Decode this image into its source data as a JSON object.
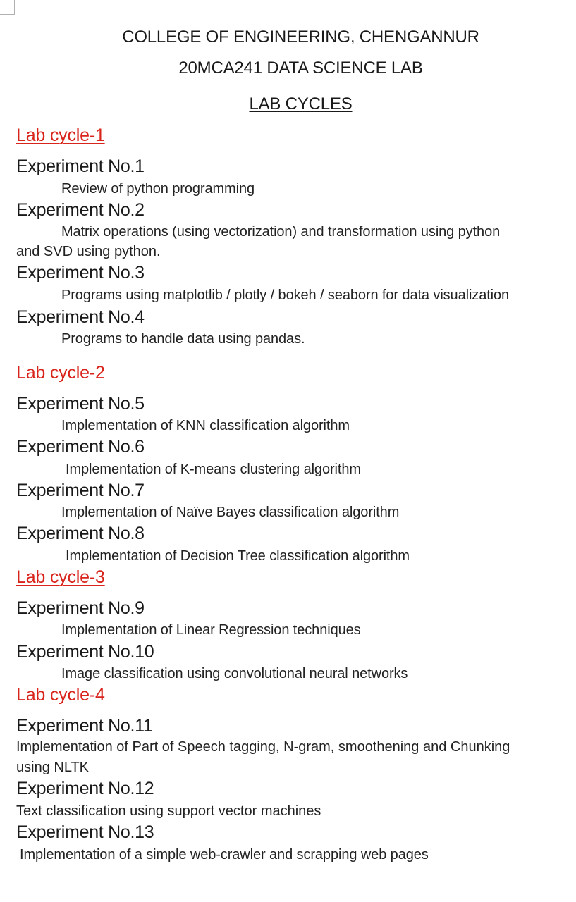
{
  "header": {
    "college": "COLLEGE OF ENGINEERING, CHENGANNUR",
    "course": "20MCA241 DATA SCIENCE LAB",
    "heading": "LAB CYCLES"
  },
  "cycles": [
    {
      "title": "Lab cycle-1",
      "experiments": [
        {
          "title": "Experiment No.1",
          "desc": "Review of python programming"
        },
        {
          "title": "Experiment No.2",
          "desc": "Matrix operations (using vectorization) and transformation using python",
          "desc_cont": "and SVD using python."
        },
        {
          "title": "Experiment No.3",
          "desc": "Programs using matplotlib / plotly / bokeh / seaborn for data visualization"
        },
        {
          "title": "Experiment No.4",
          "desc": "Programs to handle data using pandas."
        }
      ]
    },
    {
      "title": "Lab cycle-2",
      "experiments": [
        {
          "title": "Experiment No.5",
          "desc": "Implementation of KNN classification algorithm"
        },
        {
          "title": "Experiment No.6",
          "desc": "Implementation of K-means clustering algorithm"
        },
        {
          "title": "Experiment No.7",
          "desc": "Implementation of Naïve Bayes classification algorithm"
        },
        {
          "title": "Experiment No.8",
          "desc": "Implementation of Decision Tree classification algorithm"
        }
      ]
    },
    {
      "title": "Lab cycle-3",
      "experiments": [
        {
          "title": "Experiment No.9",
          "desc": "Implementation of Linear Regression techniques"
        },
        {
          "title": "Experiment No.10",
          "desc": "Image classification using convolutional neural networks"
        }
      ]
    },
    {
      "title": "Lab cycle-4",
      "experiments": [
        {
          "title": "Experiment No.11",
          "desc": "Implementation of Part of Speech tagging, N-gram, smoothening and Chunking",
          "desc_cont": "using NLTK"
        },
        {
          "title": "Experiment No.12",
          "desc": "Text classification using support vector machines"
        },
        {
          "title": "Experiment No.13",
          "desc": "Implementation of a simple web-crawler and scrapping web pages"
        }
      ]
    }
  ]
}
